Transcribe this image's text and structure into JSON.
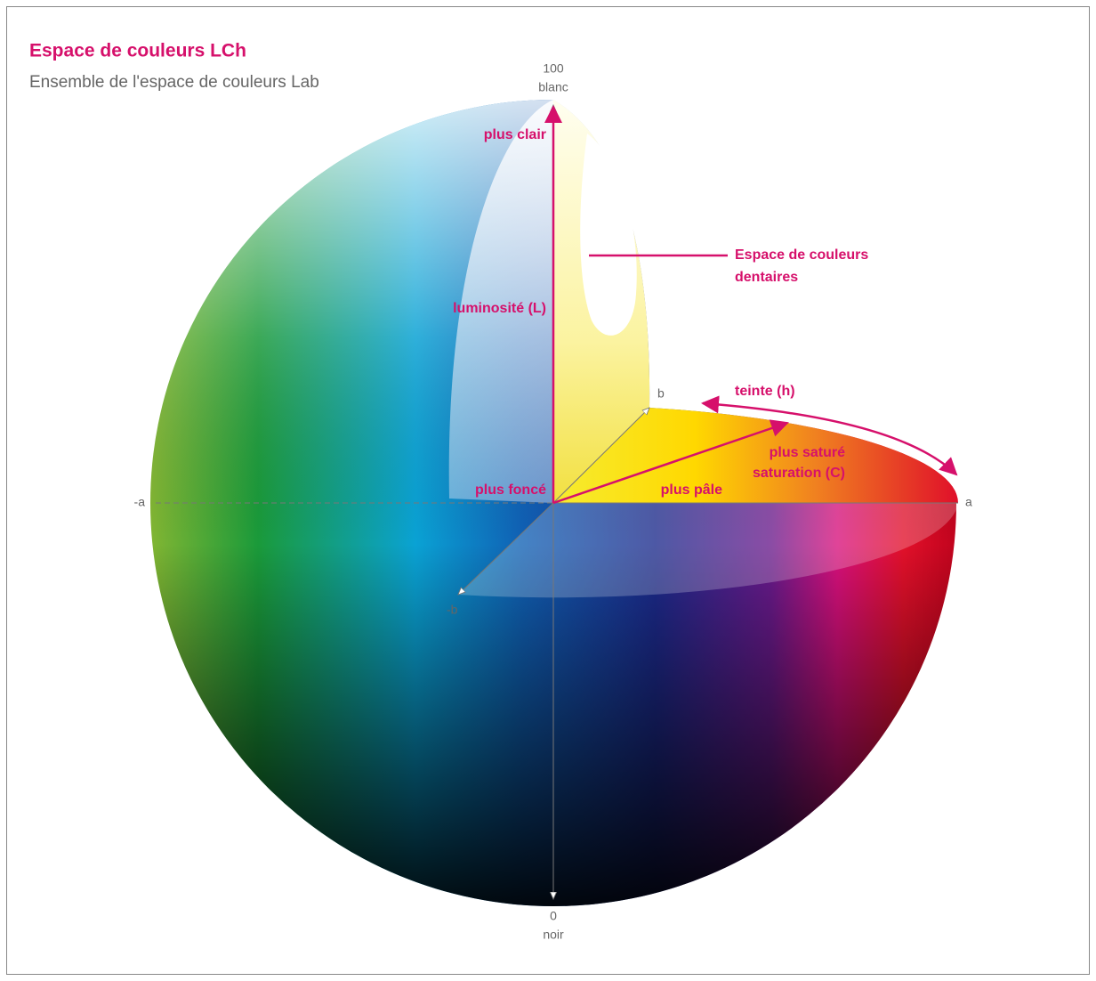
{
  "header": {
    "title": "Espace de couleurs LCh",
    "subtitle": "Ensemble de l'espace de couleurs Lab"
  },
  "axes": {
    "top_value": 100,
    "top_label": "blanc",
    "bottom_value": 0,
    "bottom_label": "noir",
    "neg_a": "-a",
    "pos_a": "a",
    "pos_b": "b",
    "neg_b": "-b"
  },
  "annotations": {
    "lighter": "plus clair",
    "lightness": "luminosité (L)",
    "dental_space": [
      "Espace de couleurs",
      "dentaires"
    ],
    "hue": "teinte (h)",
    "more_saturated": "plus saturé",
    "saturation": "saturation (C)",
    "paler": "plus pâle",
    "darker": "plus foncé"
  }
}
